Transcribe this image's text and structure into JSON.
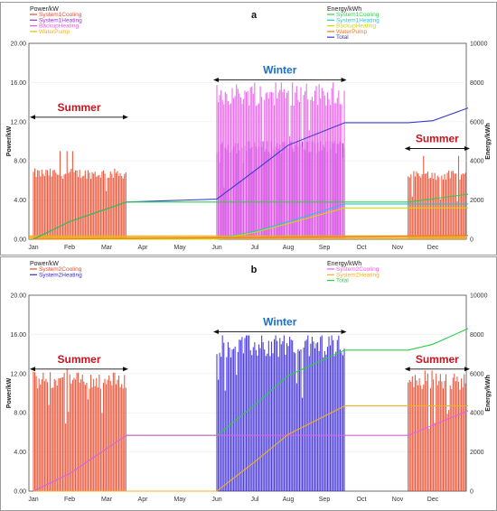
{
  "chart_data": [
    {
      "type": "bar",
      "panel_label": "a",
      "left_axis_label": "Power/kW",
      "right_axis_label": "Energy/kWh",
      "ylabel": "Power/kW",
      "y2label": "Energy/kWh",
      "ylim": [
        0,
        20
      ],
      "y2lim": [
        0,
        10000
      ],
      "y_ticks": [
        "0.00",
        "4.00",
        "8.00",
        "12.00",
        "16.00",
        "20.00"
      ],
      "y2_ticks": [
        "0",
        "2000",
        "4000",
        "6000",
        "8000",
        "10000"
      ],
      "months": [
        "Jan",
        "Feb",
        "Mar",
        "Apr",
        "May",
        "Jun",
        "Jul",
        "Aug",
        "Sep",
        "Oct",
        "Nov",
        "Dec"
      ],
      "legend_left": [
        {
          "name": "System1Cooling",
          "color": "#e84b2e"
        },
        {
          "name": "System1Heating",
          "color": "#9b2fd6"
        },
        {
          "name": "BackupHeating",
          "color": "#e85ce8"
        },
        {
          "name": "WaterPump",
          "color": "#f0b020"
        }
      ],
      "legend_right": [
        {
          "name": "System1Cooling",
          "color": "#2ccf4a"
        },
        {
          "name": "System1Heating",
          "color": "#22c6d8"
        },
        {
          "name": "BackupHeating",
          "color": "#d4d800"
        },
        {
          "name": "WaterPump",
          "color": "#f07a20"
        },
        {
          "name": "Total",
          "color": "#3a3ad0"
        }
      ],
      "annotations": [
        {
          "text": "Summer",
          "month_start": 0,
          "month_end": 2.55,
          "y": 13.2,
          "color": "#c8141e"
        },
        {
          "text": "Winter",
          "month_start": 5.0,
          "month_end": 8.55,
          "y": 17.0,
          "color": "#1a6fc4"
        },
        {
          "text": "Summer",
          "month_start": 10.3,
          "month_end": 12.0,
          "y": 10.0,
          "color": "#c8141e"
        }
      ],
      "power_series": [
        {
          "name": "System1Cooling",
          "period": "summer",
          "month_start": 0,
          "month_end": 2.55,
          "typical": 6.7,
          "max": 9.0
        },
        {
          "name": "System1Cooling",
          "period": "summer",
          "month_start": 10.3,
          "month_end": 12.0,
          "typical": 6.5,
          "max": 8.5
        },
        {
          "name": "System1Heating",
          "period": "winter",
          "month_start": 5.0,
          "month_end": 8.55,
          "typical": 9.5,
          "max": 10.0
        },
        {
          "name": "BackupHeating",
          "period": "winter",
          "month_start": 5.0,
          "month_end": 8.55,
          "typical": 14.8,
          "max": 16.0
        },
        {
          "name": "WaterPump",
          "period": "all",
          "month_start": 0,
          "month_end": 12.0,
          "typical": 0.4,
          "max": 0.5
        }
      ],
      "energy_series": [
        {
          "name": "Total",
          "color": "#3a3ad0",
          "points": [
            [
              0,
              0
            ],
            [
              1,
              900
            ],
            [
              2.55,
              1900
            ],
            [
              5.0,
              2050
            ],
            [
              6,
              3500
            ],
            [
              7,
              4800
            ],
            [
              8.55,
              5950
            ],
            [
              10.3,
              5950
            ],
            [
              11,
              6050
            ],
            [
              12,
              6700
            ]
          ]
        },
        {
          "name": "System1Cooling",
          "color": "#2ccf4a",
          "points": [
            [
              0,
              0
            ],
            [
              1,
              900
            ],
            [
              2.55,
              1900
            ],
            [
              10.3,
              1900
            ],
            [
              12,
              2300
            ]
          ]
        },
        {
          "name": "System1Heating",
          "color": "#22c6d8",
          "points": [
            [
              0,
              0
            ],
            [
              5.0,
              0
            ],
            [
              6,
              400
            ],
            [
              7,
              900
            ],
            [
              8.55,
              1800
            ],
            [
              12,
              1800
            ]
          ]
        },
        {
          "name": "BackupHeating",
          "color": "#d4d800",
          "points": [
            [
              0,
              0
            ],
            [
              5.0,
              0
            ],
            [
              6,
              350
            ],
            [
              7,
              800
            ],
            [
              8.55,
              1600
            ],
            [
              12,
              1600
            ]
          ]
        },
        {
          "name": "WaterPump",
          "color": "#f07a20",
          "points": [
            [
              0,
              0
            ],
            [
              6,
              90
            ],
            [
              12,
              200
            ]
          ]
        }
      ]
    },
    {
      "type": "bar",
      "panel_label": "b",
      "left_axis_label": "Power/kW",
      "right_axis_label": "Energy/kWh",
      "ylabel": "Power/kW",
      "y2label": "Energy/kWh",
      "ylim": [
        0,
        20
      ],
      "y2lim": [
        0,
        10000
      ],
      "y_ticks": [
        "0.00",
        "4.00",
        "8.00",
        "12.00",
        "16.00",
        "20.00"
      ],
      "y2_ticks": [
        "0",
        "2000",
        "4000",
        "6000",
        "8000",
        "10000"
      ],
      "months": [
        "Jan",
        "Feb",
        "Mar",
        "Apr",
        "May",
        "Jun",
        "Jul",
        "Aug",
        "Sep",
        "Oct",
        "Nov",
        "Dec"
      ],
      "legend_left": [
        {
          "name": "System2Cooling",
          "color": "#e84b2e"
        },
        {
          "name": "System2Heating",
          "color": "#3a2ad8"
        }
      ],
      "legend_right": [
        {
          "name": "System2Cooling",
          "color": "#e85ce8"
        },
        {
          "name": "System2Heating",
          "color": "#f0b020"
        },
        {
          "name": "Total",
          "color": "#2ccf4a"
        }
      ],
      "annotations": [
        {
          "text": "Summer",
          "month_start": 0,
          "month_end": 2.55,
          "y": 13.2,
          "color": "#c8141e"
        },
        {
          "text": "Winter",
          "month_start": 5.0,
          "month_end": 8.55,
          "y": 17.0,
          "color": "#1a6fc4"
        },
        {
          "text": "Summer",
          "month_start": 10.3,
          "month_end": 12.0,
          "y": 13.2,
          "color": "#c8141e"
        }
      ],
      "power_series": [
        {
          "name": "System2Cooling",
          "period": "summer",
          "month_start": 0,
          "month_end": 2.55,
          "typical": 11.3,
          "max": 12.5
        },
        {
          "name": "System2Cooling",
          "period": "summer",
          "month_start": 10.3,
          "month_end": 12.0,
          "typical": 11.2,
          "max": 12.3
        },
        {
          "name": "System2Heating",
          "period": "winter",
          "month_start": 5.0,
          "month_end": 8.55,
          "typical": 14.8,
          "max": 15.9
        }
      ],
      "energy_series": [
        {
          "name": "Total",
          "color": "#2ccf4a",
          "points": [
            [
              0,
              0
            ],
            [
              1,
              900
            ],
            [
              2.55,
              2850
            ],
            [
              5.0,
              2850
            ],
            [
              6,
              4400
            ],
            [
              7,
              5900
            ],
            [
              8.55,
              7200
            ],
            [
              10.3,
              7200
            ],
            [
              11,
              7500
            ],
            [
              12,
              8300
            ]
          ]
        },
        {
          "name": "System2Cooling",
          "color": "#e85ce8",
          "points": [
            [
              0,
              0
            ],
            [
              1,
              900
            ],
            [
              2.55,
              2850
            ],
            [
              10.3,
              2850
            ],
            [
              12,
              4100
            ]
          ]
        },
        {
          "name": "System2Heating",
          "color": "#f0b020",
          "points": [
            [
              0,
              0
            ],
            [
              5.0,
              0
            ],
            [
              6,
              1500
            ],
            [
              7,
              2900
            ],
            [
              8.55,
              4350
            ],
            [
              12,
              4350
            ]
          ]
        }
      ]
    }
  ]
}
